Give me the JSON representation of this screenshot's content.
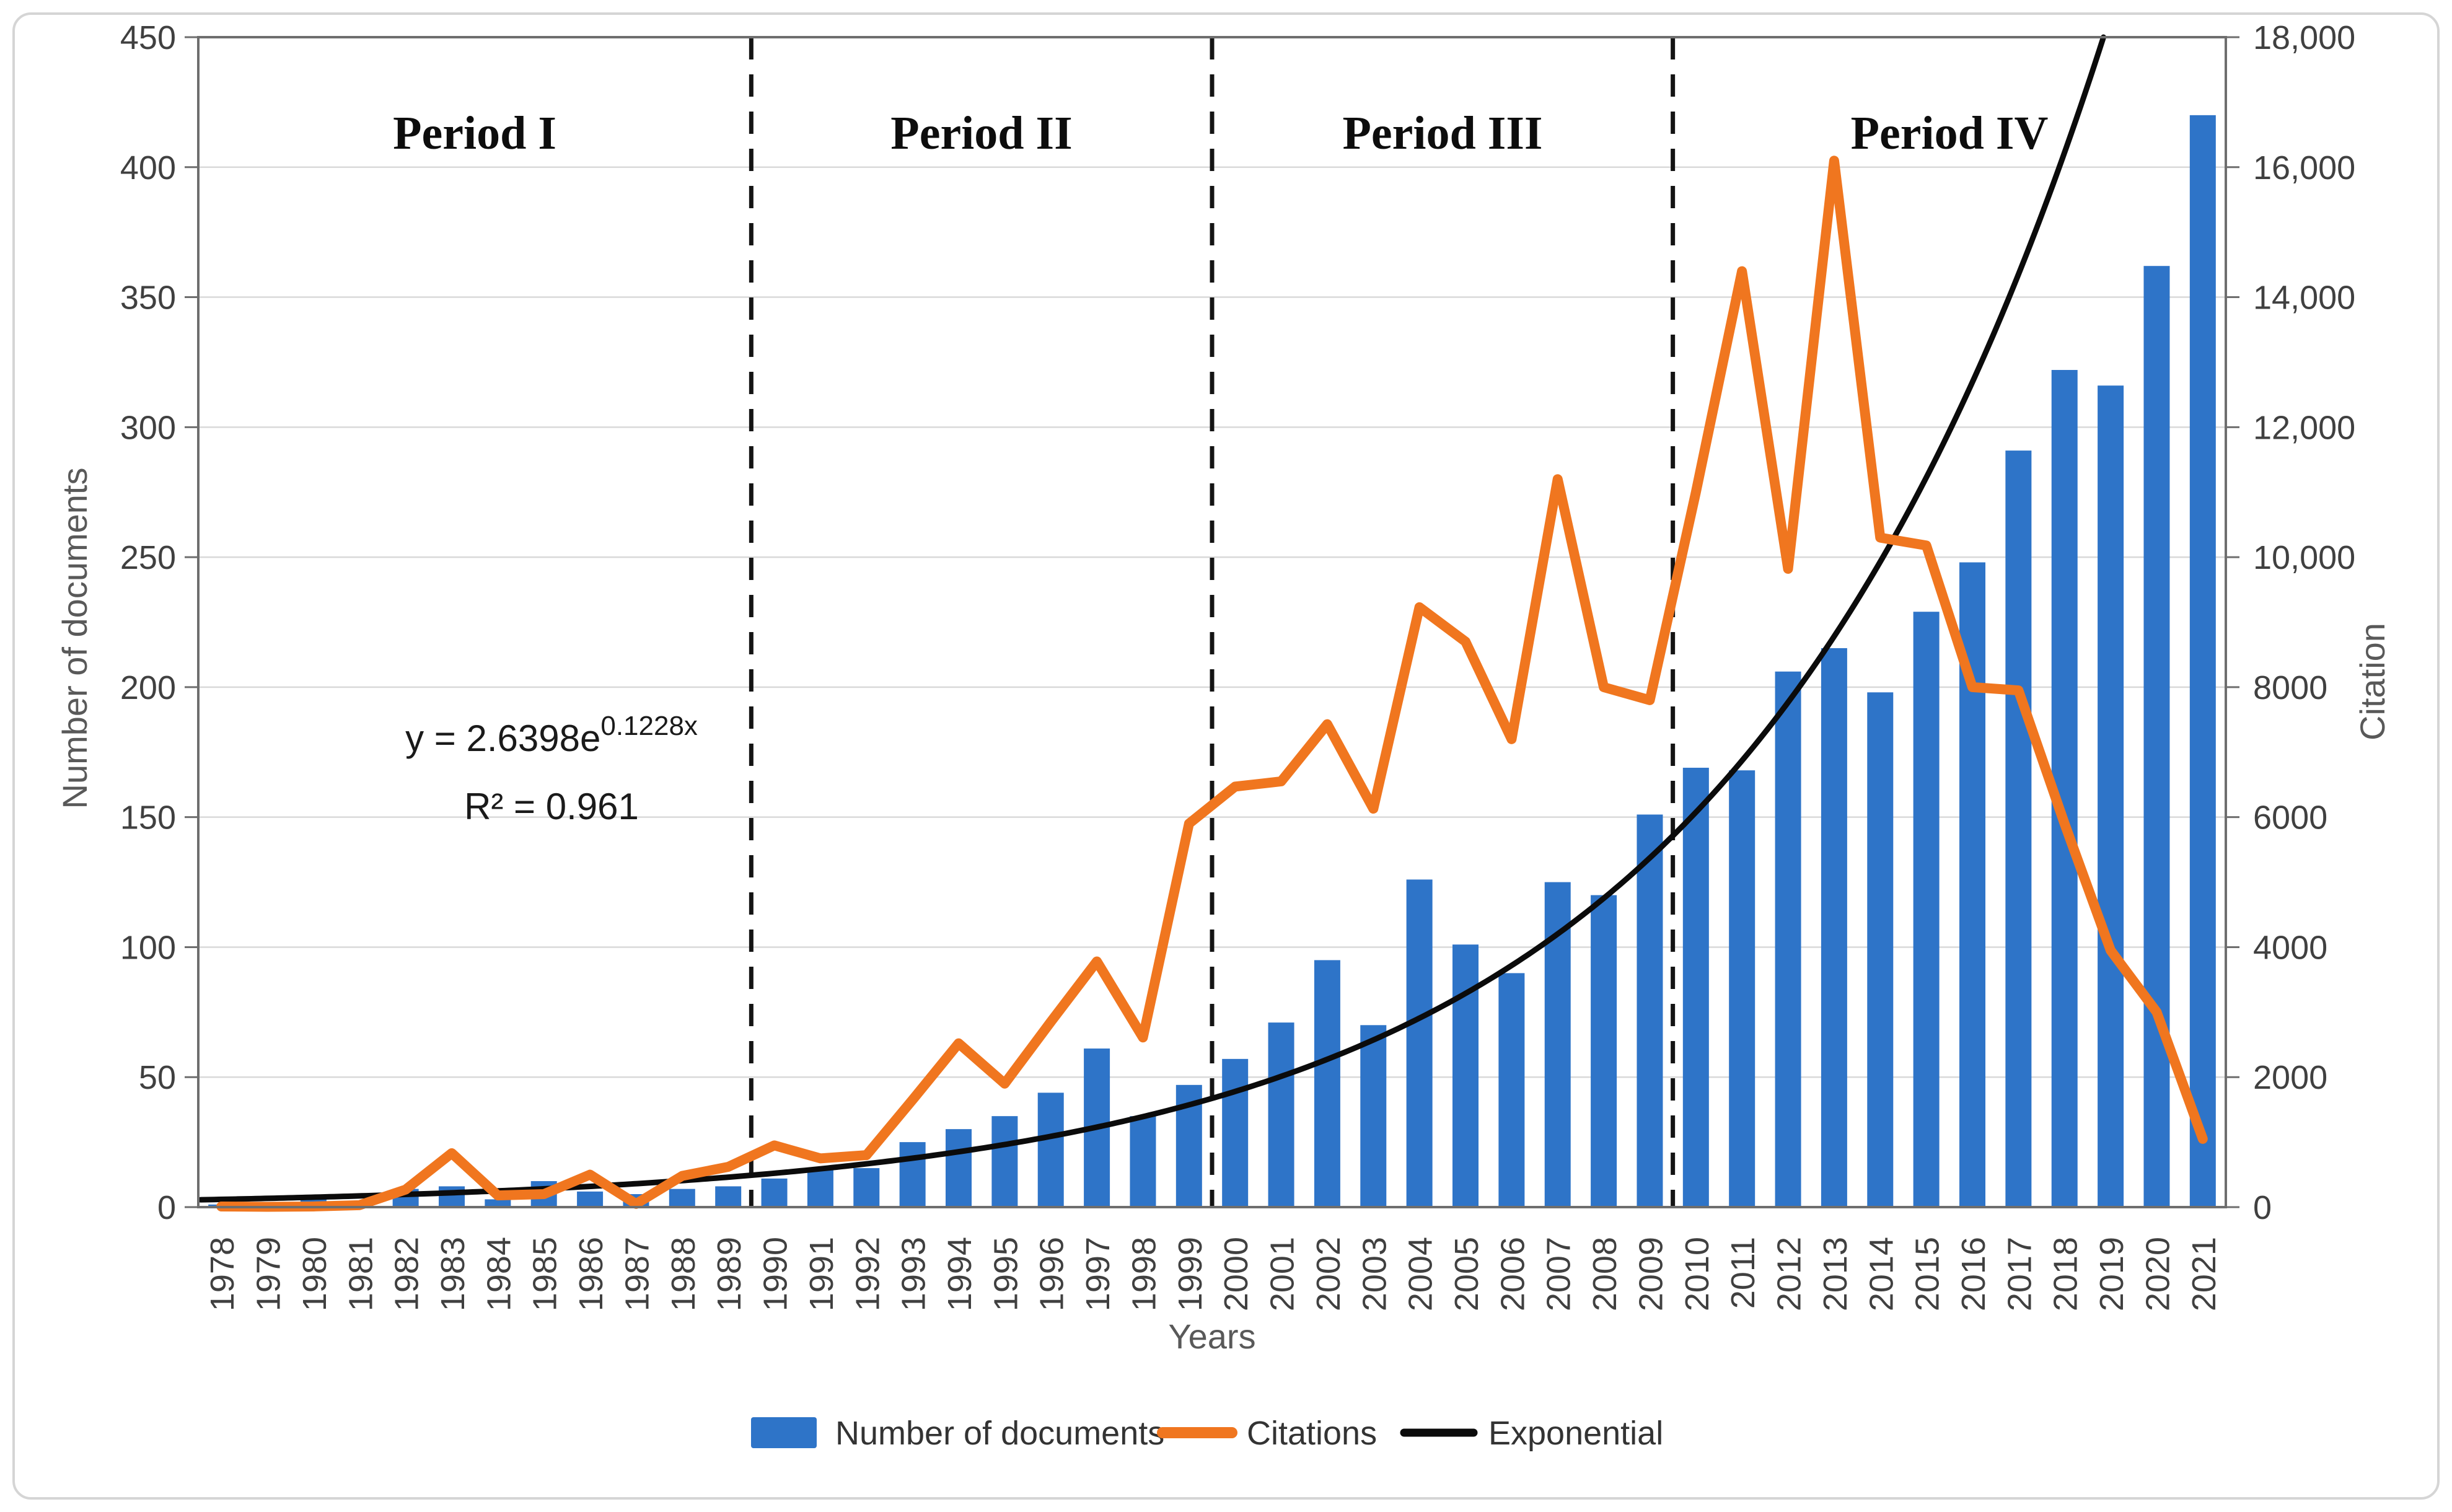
{
  "figure": {
    "background": "#ffffff",
    "border_color": "#d5d5d5"
  },
  "chart_data": {
    "type": "bar",
    "title": "",
    "x": [
      1978,
      1979,
      1980,
      1981,
      1982,
      1983,
      1984,
      1985,
      1986,
      1987,
      1988,
      1989,
      1990,
      1991,
      1992,
      1993,
      1994,
      1995,
      1996,
      1997,
      1998,
      1999,
      2000,
      2001,
      2002,
      2003,
      2004,
      2005,
      2006,
      2007,
      2008,
      2009,
      2010,
      2011,
      2012,
      2013,
      2014,
      2015,
      2016,
      2017,
      2018,
      2019,
      2020,
      2021
    ],
    "series": [
      {
        "name": "Number of documents",
        "type": "bar",
        "axis": "left",
        "color": "#2e74c8",
        "values": [
          1,
          2,
          3,
          2,
          7,
          8,
          3,
          10,
          6,
          5,
          7,
          8,
          11,
          15,
          15,
          25,
          30,
          35,
          44,
          61,
          35,
          47,
          57,
          71,
          95,
          70,
          126,
          101,
          90,
          125,
          120,
          151,
          169,
          168,
          206,
          215,
          198,
          229,
          248,
          291,
          322,
          316,
          362,
          420
        ]
      },
      {
        "name": "Citations",
        "type": "line",
        "axis": "right",
        "color": "#f0761f",
        "values": [
          10,
          5,
          10,
          30,
          270,
          830,
          180,
          200,
          500,
          50,
          480,
          620,
          950,
          750,
          800,
          1650,
          2520,
          1900,
          2850,
          3780,
          2610,
          5900,
          6470,
          6550,
          7430,
          6130,
          9230,
          8700,
          7200,
          11200,
          8000,
          7800,
          11000,
          14400,
          9820,
          16100,
          10300,
          10180,
          8000,
          7950,
          5900,
          3950,
          3000,
          1050
        ]
      },
      {
        "name": "Exponential",
        "type": "trendline",
        "axis": "left",
        "color": "#0b0b0b",
        "formula": "y = 2.6398e^(0.1228x)",
        "a": 2.6398,
        "k": 0.1228
      }
    ],
    "left_axis": {
      "label": "Number of documents",
      "min": 0,
      "max": 450,
      "step": 50,
      "tick_labels": [
        "0",
        "50",
        "100",
        "150",
        "200",
        "250",
        "300",
        "350",
        "400",
        "450"
      ]
    },
    "right_axis": {
      "label": "Citation",
      "min": 0,
      "max": 18000,
      "step": 2000,
      "tick_labels": [
        "0",
        "2000",
        "4000",
        "6000",
        "8000",
        "10,000",
        "12,000",
        "14,000",
        "16,000",
        "18,000"
      ]
    },
    "x_axis": {
      "label": "Years"
    },
    "periods": [
      {
        "label": "Period I"
      },
      {
        "label": "Period II"
      },
      {
        "label": "Period III"
      },
      {
        "label": "Period IV"
      }
    ],
    "period_boundaries": [
      12,
      22,
      32
    ],
    "annotations": {
      "equation_base": "y = 2.6398e",
      "equation_exponent": "0.1228x",
      "r_squared": "R² = 0.961"
    },
    "legend": [
      "Number of documents",
      "Citations",
      "Exponential"
    ],
    "grid": true,
    "legend_position": "bottom"
  }
}
